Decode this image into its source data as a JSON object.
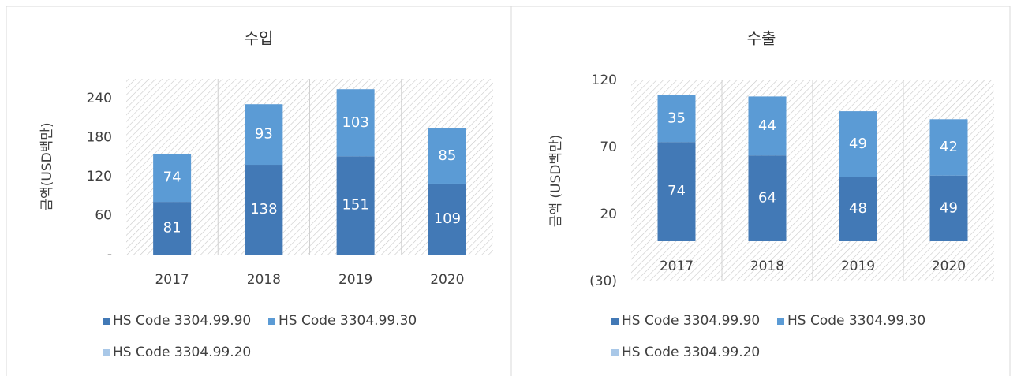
{
  "chart_data": [
    {
      "type": "stacked_bar",
      "title": "수입",
      "y_label": "금액(USD백만)",
      "categories": [
        "2017",
        "2018",
        "2019",
        "2020"
      ],
      "series": [
        {
          "name": "HS Code 3304.99.90",
          "color": "#4279b6",
          "values": [
            81,
            138,
            151,
            109
          ]
        },
        {
          "name": "HS Code 3304.99.30",
          "color": "#5b9bd5",
          "values": [
            74,
            93,
            103,
            85
          ]
        },
        {
          "name": "HS Code 3304.99.20",
          "color": "#a9c8e8",
          "values": [
            0,
            0,
            0,
            0
          ]
        }
      ],
      "ylim": [
        0,
        270
      ],
      "yticks": [
        {
          "value": 0,
          "label": "-"
        },
        60,
        120,
        180,
        240
      ],
      "grid": true,
      "hatch": true
    },
    {
      "type": "stacked_bar",
      "title": "수출",
      "y_label": "금액 (USD백만)",
      "categories": [
        "2017",
        "2018",
        "2019",
        "2020"
      ],
      "series": [
        {
          "name": "HS Code 3304.99.90",
          "color": "#4279b6",
          "values": [
            74,
            64,
            48,
            49
          ]
        },
        {
          "name": "HS Code 3304.99.30",
          "color": "#5b9bd5",
          "values": [
            35,
            44,
            49,
            42
          ]
        },
        {
          "name": "HS Code 3304.99.20",
          "color": "#a9c8e8",
          "values": [
            0,
            0,
            0,
            0
          ]
        }
      ],
      "ylim": [
        -30,
        120
      ],
      "yticks": [
        {
          "value": -30,
          "label": "(30)"
        },
        20,
        70,
        120
      ],
      "grid": true,
      "hatch": true
    }
  ]
}
